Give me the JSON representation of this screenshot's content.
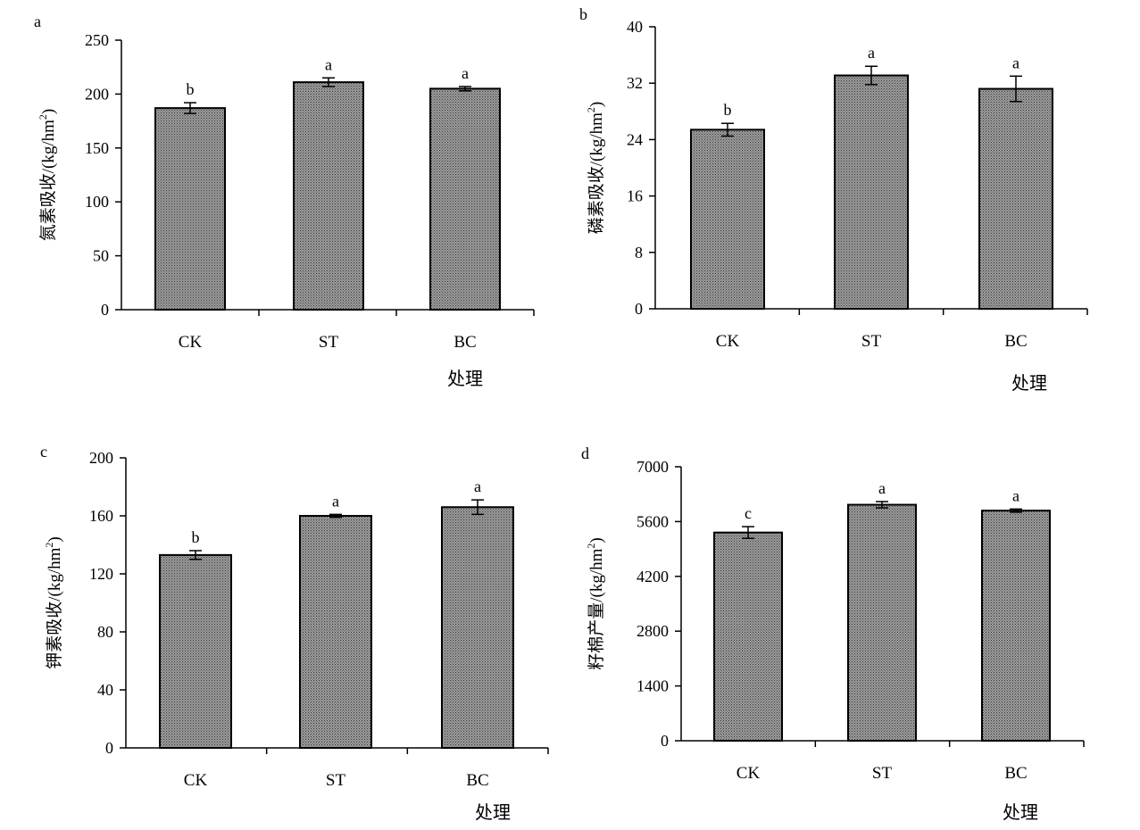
{
  "chart_data": [
    {
      "type": "bar",
      "panel": "a",
      "categories": [
        "CK",
        "ST",
        "BC"
      ],
      "values": [
        187,
        211,
        205
      ],
      "errors": [
        5,
        4,
        2
      ],
      "significance": [
        "b",
        "a",
        "a"
      ],
      "xlabel": "处理",
      "ylabel": "氮素吸收/(kg/hm",
      "ylabel_sup": "2",
      "ylabel_end": ")",
      "ylim": [
        0,
        250
      ],
      "yticks": [
        0,
        50,
        100,
        150,
        200,
        250
      ]
    },
    {
      "type": "bar",
      "panel": "b",
      "categories": [
        "CK",
        "ST",
        "BC"
      ],
      "values": [
        25.4,
        33.1,
        31.2
      ],
      "errors": [
        0.9,
        1.3,
        1.8
      ],
      "significance": [
        "b",
        "a",
        "a"
      ],
      "xlabel": "处理",
      "ylabel": "磷素吸收/(kg/hm",
      "ylabel_sup": "2",
      "ylabel_end": ")",
      "ylim": [
        0,
        40
      ],
      "yticks": [
        0,
        8,
        16,
        24,
        32,
        40
      ]
    },
    {
      "type": "bar",
      "panel": "c",
      "categories": [
        "CK",
        "ST",
        "BC"
      ],
      "values": [
        133,
        160,
        166
      ],
      "errors": [
        3,
        1,
        5
      ],
      "significance": [
        "b",
        "a",
        "a"
      ],
      "xlabel": "处理",
      "ylabel": "钾素吸收/(kg/hm",
      "ylabel_sup": "2",
      "ylabel_end": ")",
      "ylim": [
        0,
        200
      ],
      "yticks": [
        0,
        40,
        80,
        120,
        160,
        200
      ]
    },
    {
      "type": "bar",
      "panel": "d",
      "categories": [
        "CK",
        "ST",
        "BC"
      ],
      "values": [
        5320,
        6030,
        5880
      ],
      "errors": [
        150,
        80,
        40
      ],
      "significance": [
        "c",
        "a",
        "a"
      ],
      "xlabel": "处理",
      "ylabel": "籽棉产量/(kg/hm",
      "ylabel_sup": "2",
      "ylabel_end": ")",
      "ylim": [
        0,
        7000
      ],
      "yticks": [
        0,
        1400,
        2800,
        4200,
        5600,
        7000
      ]
    }
  ],
  "colors": {
    "bar_fill": "#8c8c8c",
    "bar_stroke": "#000000",
    "axis": "#000000"
  }
}
